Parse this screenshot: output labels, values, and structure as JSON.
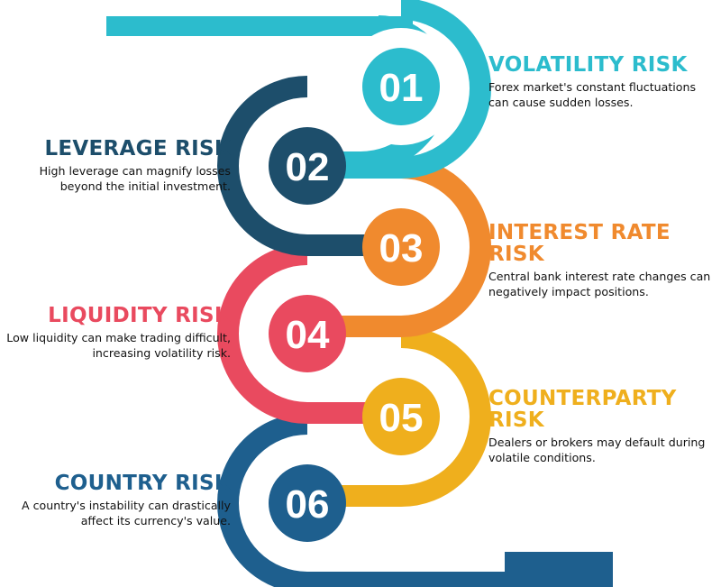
{
  "colors": {
    "teal": "#2cbccd",
    "darkblue": "#1d4e6b",
    "orange": "#f08a2e",
    "red": "#e94a5f",
    "yellow": "#efaf1d",
    "blue": "#1e5f8e"
  },
  "steps": [
    {
      "number": "01",
      "title": "VOLATILITY RISK",
      "text": "Forex market's constant fluctuations can cause sudden losses.",
      "color": "#2cbccd"
    },
    {
      "number": "02",
      "title": "LEVERAGE RISK",
      "text": "High leverage can magnify losses beyond the initial investment.",
      "color": "#1d4e6b"
    },
    {
      "number": "03",
      "title": "INTEREST RATE RISK",
      "text": "Central bank interest rate changes can negatively impact positions.",
      "color": "#f08a2e"
    },
    {
      "number": "04",
      "title": "LIQUIDITY RISK",
      "text": "Low liquidity can make trading difficult, increasing volatility risk.",
      "color": "#e94a5f"
    },
    {
      "number": "05",
      "title": "COUNTERPARTY RISK",
      "text": "Dealers or brokers may default during volatile conditions.",
      "color": "#efaf1d"
    },
    {
      "number": "06",
      "title": "COUNTRY RISK",
      "text": "A country's instability can drastically affect its currency's value.",
      "color": "#1e5f8e"
    }
  ]
}
